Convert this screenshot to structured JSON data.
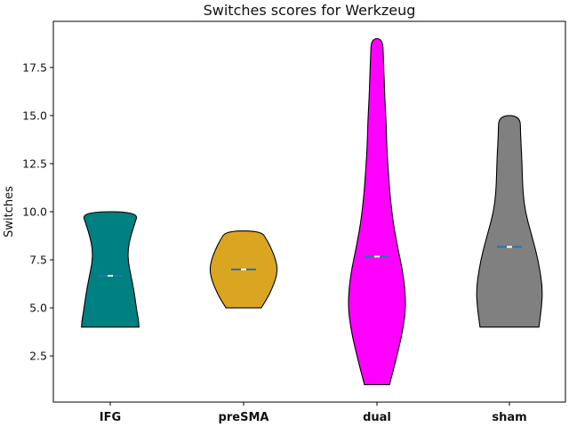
{
  "chart_data": {
    "type": "violin",
    "title": "Switches scores for Werkzeug",
    "xlabel": "",
    "ylabel": "Switches",
    "ylim": [
      0.1,
      19.9
    ],
    "yticks": [
      2.5,
      5.0,
      7.5,
      10.0,
      12.5,
      15.0,
      17.5
    ],
    "ytick_labels": [
      "2.5",
      "5.0",
      "7.5",
      "10.0",
      "12.5",
      "15.0",
      "17.5"
    ],
    "grid": false,
    "legend": "none",
    "categories": [
      "IFG",
      "preSMA",
      "dual",
      "sham"
    ],
    "groups": [
      {
        "category": "IFG",
        "color": "#008080",
        "min": 4.0,
        "max": 10.0,
        "mean": 6.67,
        "median": 6.67,
        "density": [
          [
            4.0,
            0.85
          ],
          [
            4.3,
            0.84
          ],
          [
            4.7,
            0.8
          ],
          [
            5.3,
            0.75
          ],
          [
            6.0,
            0.69
          ],
          [
            6.7,
            0.61
          ],
          [
            7.3,
            0.54
          ],
          [
            8.0,
            0.52
          ],
          [
            8.7,
            0.6
          ],
          [
            9.3,
            0.71
          ],
          [
            10.0,
            0.84
          ]
        ]
      },
      {
        "category": "preSMA",
        "color": "#DAA520",
        "min": 5.0,
        "max": 9.0,
        "mean": 7.0,
        "median": 7.0,
        "density": [
          [
            5.0,
            0.52
          ],
          [
            5.5,
            0.7
          ],
          [
            6.0,
            0.84
          ],
          [
            6.5,
            0.95
          ],
          [
            7.0,
            1.0
          ],
          [
            7.5,
            0.95
          ],
          [
            8.0,
            0.84
          ],
          [
            8.5,
            0.7
          ],
          [
            9.0,
            0.52
          ]
        ]
      },
      {
        "category": "dual",
        "color": "#FF00FF",
        "min": 1.0,
        "max": 19.0,
        "mean": 7.67,
        "median": 7.67,
        "density": [
          [
            1.0,
            0.37
          ],
          [
            2.0,
            0.52
          ],
          [
            3.0,
            0.66
          ],
          [
            4.0,
            0.78
          ],
          [
            5.0,
            0.85
          ],
          [
            6.0,
            0.83
          ],
          [
            7.0,
            0.75
          ],
          [
            8.0,
            0.63
          ],
          [
            9.0,
            0.52
          ],
          [
            10.0,
            0.44
          ],
          [
            11.0,
            0.38
          ],
          [
            12.0,
            0.34
          ],
          [
            13.0,
            0.3
          ],
          [
            14.0,
            0.28
          ],
          [
            15.0,
            0.26
          ],
          [
            16.0,
            0.23
          ],
          [
            17.0,
            0.21
          ],
          [
            18.0,
            0.19
          ],
          [
            19.0,
            0.17
          ]
        ]
      },
      {
        "category": "sham",
        "color": "#808080",
        "min": 4.0,
        "max": 15.0,
        "mean": 8.17,
        "median": 8.17,
        "density": [
          [
            4.0,
            0.87
          ],
          [
            5.0,
            0.95
          ],
          [
            6.0,
            0.98
          ],
          [
            7.0,
            0.9
          ],
          [
            8.0,
            0.78
          ],
          [
            9.0,
            0.62
          ],
          [
            10.0,
            0.47
          ],
          [
            11.0,
            0.4
          ],
          [
            12.0,
            0.38
          ],
          [
            13.0,
            0.36
          ],
          [
            14.0,
            0.33
          ],
          [
            15.0,
            0.32
          ]
        ]
      }
    ]
  }
}
